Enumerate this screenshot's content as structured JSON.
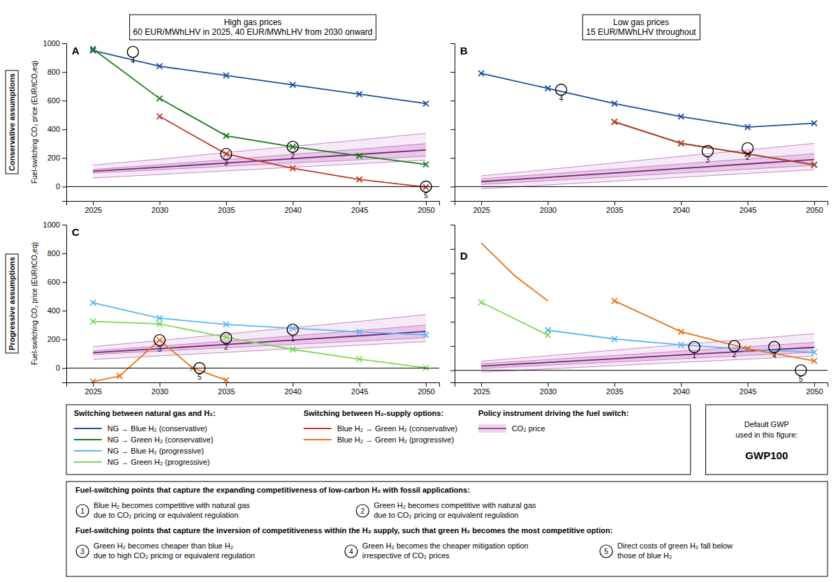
{
  "chart_data": [
    {
      "type": "line",
      "title": "High gas prices\n60 EUR/MWhLHV in 2025, 40 EUR/MWhLHV from 2030 onward",
      "y_label": "Fuel-switching CO₂ price (EUR/tCO₂eq)",
      "x": [
        2025,
        2030,
        2035,
        2040,
        2045,
        2050
      ],
      "xlim": [
        2023,
        2051
      ],
      "ylim": [
        -100,
        1000
      ],
      "xticks": [
        2025,
        2030,
        2035,
        2040,
        2045,
        2050
      ],
      "yticks": [
        0,
        200,
        400,
        600,
        800,
        1000
      ],
      "grid": false,
      "series": [
        {
          "type": "band",
          "color": "#d4a0d4",
          "line_color": "#c07dc0",
          "low": [
            60,
            85,
            110,
            135,
            160,
            185
          ],
          "high": [
            150,
            192,
            238,
            282,
            326,
            373
          ]
        },
        {
          "type": "band",
          "color": "#d4a0d4",
          "line_color": "#c07dc0",
          "low": [
            95,
            118,
            142,
            165,
            188,
            212
          ],
          "high": [
            120,
            153,
            188,
            225,
            262,
            300
          ]
        },
        {
          "type": "line",
          "color": "#7a257a",
          "values": [
            107.5,
            135.5,
            165,
            195,
            225,
            256
          ]
        },
        {
          "type": "line",
          "color": "#1b4f9e",
          "marker": "x",
          "values": [
            950,
            840,
            775,
            710,
            645,
            580
          ]
        },
        {
          "type": "line",
          "color": "#1a7a1a",
          "marker": "x",
          "values": [
            960,
            615,
            355,
            278,
            215,
            155
          ]
        },
        {
          "type": "line",
          "color": "#c0392b",
          "marker": "x",
          "values": [
            null,
            490,
            228,
            128,
            50,
            -3
          ]
        }
      ],
      "annotations": [
        {
          "type": "hline",
          "y": 0,
          "color": "#000000"
        },
        {
          "type": "label",
          "text": "A",
          "x": 2023.4,
          "y": 975
        },
        {
          "type": "milestone",
          "text": "4",
          "x": 2028,
          "y": 940
        },
        {
          "type": "milestone",
          "text": "2",
          "x": 2040,
          "y": 278
        },
        {
          "type": "milestone",
          "text": "3",
          "x": 2035,
          "y": 228
        },
        {
          "type": "milestone",
          "text": "5",
          "x": 2050,
          "y": 0
        }
      ]
    },
    {
      "type": "line",
      "title": "Low gas prices\n15 EUR/MWhLHV throughout",
      "x": [
        2025,
        2030,
        2035,
        2040,
        2045,
        2050
      ],
      "xlim": [
        2023,
        2051
      ],
      "ylim": [
        -100,
        1000
      ],
      "xticks": [
        2025,
        2030,
        2035,
        2040,
        2045,
        2050
      ],
      "yticks": [
        0,
        200,
        400,
        600,
        800,
        1000
      ],
      "grid": false,
      "tick_labels": "x",
      "series": [
        {
          "type": "band",
          "color": "#d4a0d4",
          "line_color": "#c07dc0",
          "low": [
            -15,
            12,
            38,
            65,
            92,
            118
          ],
          "high": [
            75,
            120,
            166,
            212,
            256,
            302
          ]
        },
        {
          "type": "band",
          "color": "#d4a0d4",
          "line_color": "#c07dc0",
          "low": [
            15,
            42,
            68,
            95,
            122,
            148
          ],
          "high": [
            55,
            88,
            122,
            158,
            194,
            230
          ]
        },
        {
          "type": "line",
          "color": "#7a257a",
          "values": [
            35,
            65,
            95,
            126.5,
            158,
            189
          ]
        },
        {
          "type": "line",
          "color": "#1b4f9e",
          "marker": "x",
          "values": [
            790,
            685,
            580,
            488,
            415,
            442
          ]
        },
        {
          "type": "line",
          "color": "#1a7a1a",
          "marker": "x",
          "values": [
            null,
            null,
            452,
            302,
            228,
            152
          ]
        },
        {
          "type": "line",
          "color": "#c0392b",
          "marker": "x",
          "values": [
            null,
            null,
            452,
            302,
            228,
            152
          ]
        }
      ],
      "annotations": [
        {
          "type": "hline",
          "y": 0,
          "color": "#000000"
        },
        {
          "type": "label",
          "text": "B",
          "x": 2023.4,
          "y": 975
        },
        {
          "type": "milestone",
          "text": "4",
          "x": 2031,
          "y": 676
        },
        {
          "type": "milestone",
          "text": "3",
          "x": 2042,
          "y": 248
        },
        {
          "type": "milestone",
          "text": "2",
          "x": 2045,
          "y": 268
        }
      ]
    },
    {
      "type": "line",
      "y_label": "Fuel-switching CO₂ price (EUR/tCO₂eq)",
      "x": [
        2025,
        2030,
        2035,
        2040,
        2045,
        2050
      ],
      "xlim": [
        2023,
        2051
      ],
      "ylim": [
        -100,
        1000
      ],
      "xticks": [
        2025,
        2030,
        2035,
        2040,
        2045,
        2050
      ],
      "yticks": [
        0,
        200,
        400,
        600,
        800,
        1000
      ],
      "grid": false,
      "series": [
        {
          "type": "band",
          "color": "#d4a0d4",
          "line_color": "#c07dc0",
          "low": [
            60,
            85,
            110,
            135,
            160,
            185
          ],
          "high": [
            150,
            192,
            238,
            282,
            326,
            373
          ]
        },
        {
          "type": "band",
          "color": "#d4a0d4",
          "line_color": "#c07dc0",
          "low": [
            95,
            118,
            142,
            165,
            188,
            212
          ],
          "high": [
            120,
            153,
            188,
            225,
            262,
            300
          ]
        },
        {
          "type": "line",
          "color": "#7a257a",
          "values": [
            107.5,
            135.5,
            165,
            195,
            225,
            256
          ]
        },
        {
          "type": "line",
          "color": "#5ab8f5",
          "marker": "x",
          "values": [
            455,
            348,
            305,
            278,
            252,
            232
          ]
        },
        {
          "type": "line",
          "color": "#7ed858",
          "marker": "x",
          "values": [
            325,
            308,
            215,
            130,
            62,
            2
          ]
        },
        {
          "type": "line",
          "color": "#e8731a",
          "marker": "x",
          "x": [
            2025,
            2027,
            2030,
            2032.5,
            2035
          ],
          "values": [
            -95,
            -55,
            195,
            0,
            -85
          ]
        }
      ],
      "annotations": [
        {
          "type": "hline",
          "y": 0,
          "color": "#000000"
        },
        {
          "type": "label",
          "text": "C",
          "x": 2023.4,
          "y": 975
        },
        {
          "type": "milestone",
          "text": "3",
          "x": 2030,
          "y": 195
        },
        {
          "type": "milestone",
          "text": "5",
          "x": 2033,
          "y": 0
        },
        {
          "type": "milestone",
          "text": "2",
          "x": 2035,
          "y": 210
        },
        {
          "type": "milestone",
          "text": "1",
          "x": 2040,
          "y": 268
        }
      ]
    },
    {
      "type": "line",
      "x": [
        2025,
        2030,
        2035,
        2040,
        2045,
        2050
      ],
      "xlim": [
        2023,
        2051
      ],
      "ylim": [
        -100,
        1200
      ],
      "xticks": [
        2025,
        2030,
        2035,
        2040,
        2045,
        2050
      ],
      "yticks": [
        0,
        200,
        400,
        600,
        800,
        1000,
        1200
      ],
      "grid": false,
      "tick_labels": "x",
      "series": [
        {
          "type": "band",
          "color": "#d4a0d4",
          "line_color": "#c07dc0",
          "low": [
            -15,
            12,
            38,
            65,
            92,
            118
          ],
          "high": [
            75,
            120,
            166,
            212,
            256,
            302
          ]
        },
        {
          "type": "band",
          "color": "#d4a0d4",
          "line_color": "#c07dc0",
          "low": [
            15,
            42,
            68,
            95,
            122,
            148
          ],
          "high": [
            55,
            88,
            122,
            158,
            194,
            230
          ]
        },
        {
          "type": "line",
          "color": "#7a257a",
          "values": [
            35,
            65,
            95,
            126.5,
            158,
            189
          ]
        },
        {
          "type": "line",
          "color": "#5ab8f5",
          "marker": "x",
          "values": [
            null,
            330,
            258,
            210,
            172,
            148
          ]
        },
        {
          "type": "line",
          "color": "#7ed858",
          "marker": "x",
          "values": [
            560,
            290,
            null,
            null,
            null,
            null
          ]
        },
        {
          "type": "line",
          "color": "#e8731a",
          "marker": "x",
          "values": [
            null,
            null,
            572,
            318,
            178,
            78
          ]
        },
        {
          "type": "line",
          "color": "#e8731a",
          "x": [
            2025,
            2027.5,
            2030
          ],
          "values": [
            1050,
            780,
            572
          ]
        }
      ],
      "annotations": [
        {
          "type": "hline",
          "y": 0,
          "color": "#000000"
        },
        {
          "type": "label",
          "text": "D",
          "x": 2023.4,
          "y": 975
        },
        {
          "type": "milestone",
          "text": "1",
          "x": 2041,
          "y": 192
        },
        {
          "type": "milestone",
          "text": "2",
          "x": 2044,
          "y": 200
        },
        {
          "type": "milestone",
          "text": "4",
          "x": 2047,
          "y": 192
        },
        {
          "type": "milestone",
          "text": "5",
          "x": 2049,
          "y": 0
        }
      ]
    }
  ],
  "row_labels": [
    "Conservative assumptions",
    "Progressive assumptions"
  ],
  "key": {
    "groups": [
      {
        "title": "Switching between natural gas and H₂:",
        "items": [
          {
            "name": "NG → Blue H₂ (conservative)",
            "color": "#1b4f9e"
          },
          {
            "name": "NG → Green H₂ (conservative)",
            "color": "#1a7a1a"
          },
          {
            "name": "NG → Blue H₂ (progressive)",
            "color": "#5ab8f5"
          },
          {
            "name": "NG → Green H₂ (progressive)",
            "color": "#7ed858"
          }
        ]
      },
      {
        "title": "Switching between H₂-supply options:",
        "items": [
          {
            "name": "Blue H₂ → Green H₂ (conservative)",
            "color": "#c0392b"
          },
          {
            "name": "Blue H₂ → Green H₂ (progressive)",
            "color": "#e8731a"
          }
        ]
      },
      {
        "title": "Policy instrument driving the fuel switch:",
        "items": [
          {
            "name": "CO₂ price",
            "type": "band",
            "color": "#d4a0d4",
            "line_color": "#7a257a"
          }
        ]
      }
    ]
  },
  "gwp_note": {
    "text": "Default GWP\nused in this figure:",
    "value": "GWP100"
  },
  "milestone_key": [
    {
      "header": "Fuel-switching points that capture the expanding competitiveness of low-carbon H₂ with fossil applications:",
      "items": [
        {
          "number": "1",
          "lines": [
            "Blue H₂ becomes competitive with natural gas",
            "due to CO₂ pricing or equivalent regulation"
          ]
        },
        {
          "number": "2",
          "lines": [
            "Green H₂ becomes competitive with natural gas",
            "due to CO₂ pricing or equivalent regulation"
          ]
        }
      ]
    },
    {
      "header": "Fuel-switching points that capture the inversion of competitiveness within the H₂ supply, such that green H₂ becomes the most competitive option:",
      "items": [
        {
          "number": "3",
          "lines": [
            "Green H₂ becomes cheaper than blue H₂",
            "due to high CO₂ pricing or equivalent regulation"
          ]
        },
        {
          "number": "4",
          "lines": [
            "Green H₂ becomes the cheaper mitigation option",
            "irrespective of CO₂ prices"
          ]
        },
        {
          "number": "5",
          "lines": [
            "Direct costs of green H₂ fall below",
            "those of blue H₂"
          ]
        }
      ]
    }
  ]
}
